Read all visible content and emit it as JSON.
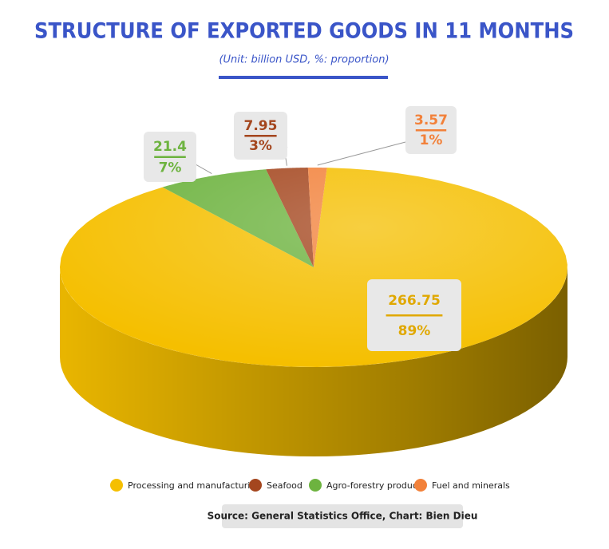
{
  "chart_data": {
    "type": "pie",
    "title": "STRUCTURE OF EXPORTED GOODS IN 11 MONTHS",
    "subtitle": "(Unit: billion USD, %: proportion)",
    "categories": [
      "Processing and manufacturing",
      "Seafood",
      "Agro-forestry products",
      "Fuel and minerals"
    ],
    "values": [
      266.75,
      7.95,
      21.4,
      3.57
    ],
    "percent_labels": [
      "89%",
      "3%",
      "7%",
      "1%"
    ],
    "colors": [
      "#f5bf00",
      "#a4461e",
      "#6db33f",
      "#f2813a"
    ],
    "source": "Source: General Statistics Office, Chart: Bien Dieu"
  }
}
